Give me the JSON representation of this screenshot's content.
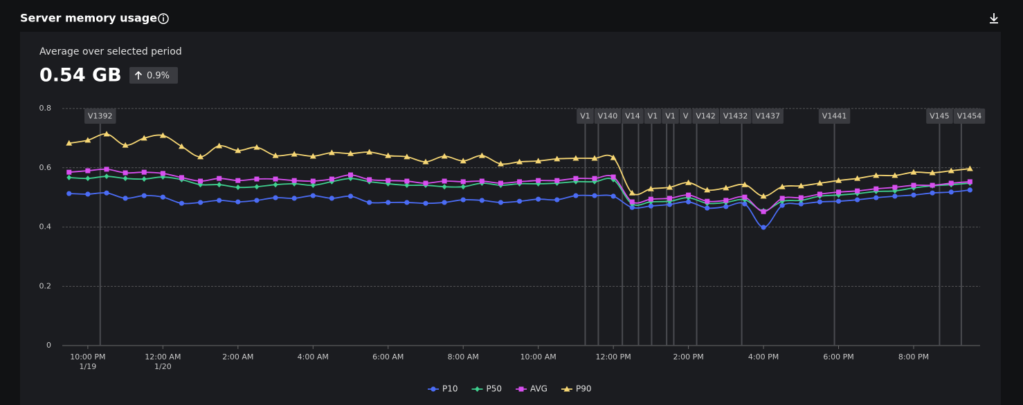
{
  "chart_data": {
    "type": "line",
    "title": "Server memory usage",
    "subtitle": "Average over selected period",
    "summary_value": "0.54 GB",
    "summary_change": "0.9%",
    "x": [
      21.5,
      22,
      22.5,
      23,
      23.5,
      24,
      24.5,
      25,
      25.5,
      26,
      26.5,
      27,
      27.5,
      28,
      28.5,
      29,
      29.5,
      30,
      30.5,
      31,
      31.5,
      32,
      32.5,
      33,
      33.5,
      34,
      34.5,
      35,
      35.5,
      36,
      36.5,
      37,
      37.5,
      38,
      38.5,
      39,
      39.5,
      40,
      40.5,
      41,
      41.5,
      42,
      42.5,
      43,
      43.5,
      44,
      44.5,
      45,
      45.5
    ],
    "xlim": [
      21.32,
      45.77
    ],
    "xticks": [
      {
        "value": 22,
        "label": "10:00 PM",
        "date": "1/19"
      },
      {
        "value": 24,
        "label": "12:00 AM",
        "date": "1/20"
      },
      {
        "value": 26,
        "label": "2:00 AM"
      },
      {
        "value": 28,
        "label": "4:00 AM"
      },
      {
        "value": 30,
        "label": "6:00 AM"
      },
      {
        "value": 32,
        "label": "8:00 AM"
      },
      {
        "value": 34,
        "label": "10:00 AM"
      },
      {
        "value": 36,
        "label": "12:00 PM"
      },
      {
        "value": 38,
        "label": "2:00 PM"
      },
      {
        "value": 40,
        "label": "4:00 PM"
      },
      {
        "value": 42,
        "label": "6:00 PM"
      },
      {
        "value": 44,
        "label": "8:00 PM"
      }
    ],
    "ylim": [
      0,
      0.8
    ],
    "yticks": [
      0,
      0.2,
      0.4,
      0.6,
      0.8
    ],
    "grid": true,
    "legend": "bottom",
    "series": [
      {
        "name": "P10",
        "color": "#4b6cf5",
        "marker": "circle",
        "values": [
          0.513,
          0.511,
          0.515,
          0.497,
          0.506,
          0.501,
          0.48,
          0.483,
          0.49,
          0.485,
          0.49,
          0.499,
          0.497,
          0.506,
          0.497,
          0.504,
          0.483,
          0.483,
          0.483,
          0.48,
          0.483,
          0.492,
          0.49,
          0.483,
          0.487,
          0.494,
          0.492,
          0.506,
          0.506,
          0.504,
          0.466,
          0.471,
          0.476,
          0.485,
          0.464,
          0.469,
          0.478,
          0.399,
          0.473,
          0.478,
          0.485,
          0.487,
          0.492,
          0.499,
          0.504,
          0.508,
          0.515,
          0.518,
          0.525
        ]
      },
      {
        "name": "P50",
        "color": "#3fd18f",
        "marker": "diamond",
        "values": [
          0.567,
          0.564,
          0.571,
          0.564,
          0.562,
          0.569,
          0.56,
          0.543,
          0.543,
          0.534,
          0.536,
          0.543,
          0.546,
          0.541,
          0.553,
          0.564,
          0.553,
          0.546,
          0.541,
          0.541,
          0.536,
          0.536,
          0.548,
          0.541,
          0.546,
          0.546,
          0.548,
          0.553,
          0.553,
          0.56,
          0.478,
          0.485,
          0.487,
          0.499,
          0.48,
          0.483,
          0.492,
          0.455,
          0.487,
          0.49,
          0.504,
          0.508,
          0.513,
          0.52,
          0.522,
          0.532,
          0.539,
          0.543,
          0.548
        ]
      },
      {
        "name": "AVG",
        "color": "#d84ff0",
        "marker": "square",
        "values": [
          0.585,
          0.59,
          0.595,
          0.583,
          0.585,
          0.581,
          0.567,
          0.555,
          0.564,
          0.557,
          0.562,
          0.562,
          0.557,
          0.555,
          0.562,
          0.576,
          0.56,
          0.557,
          0.555,
          0.548,
          0.555,
          0.553,
          0.555,
          0.548,
          0.553,
          0.557,
          0.557,
          0.564,
          0.564,
          0.569,
          0.485,
          0.494,
          0.497,
          0.508,
          0.487,
          0.49,
          0.501,
          0.452,
          0.497,
          0.499,
          0.511,
          0.518,
          0.522,
          0.529,
          0.534,
          0.541,
          0.541,
          0.548,
          0.553
        ]
      },
      {
        "name": "P90",
        "color": "#f7d774",
        "marker": "triangle",
        "values": [
          0.683,
          0.693,
          0.714,
          0.676,
          0.7,
          0.709,
          0.672,
          0.637,
          0.674,
          0.658,
          0.669,
          0.641,
          0.646,
          0.639,
          0.651,
          0.648,
          0.653,
          0.641,
          0.637,
          0.62,
          0.639,
          0.623,
          0.641,
          0.613,
          0.62,
          0.623,
          0.63,
          0.632,
          0.632,
          0.634,
          0.515,
          0.529,
          0.534,
          0.55,
          0.525,
          0.532,
          0.543,
          0.504,
          0.536,
          0.539,
          0.548,
          0.557,
          0.564,
          0.574,
          0.574,
          0.585,
          0.583,
          0.59,
          0.597
        ]
      }
    ],
    "annotations": [
      {
        "x": 22.33,
        "label": "V1392"
      },
      {
        "x": 35.25,
        "label": "V1"
      },
      {
        "x": 35.6,
        "label": "V140"
      },
      {
        "x": 36.24,
        "label": "V14"
      },
      {
        "x": 36.67,
        "label": "V1"
      },
      {
        "x": 37.02,
        "label": "V1"
      },
      {
        "x": 37.42,
        "label": "V"
      },
      {
        "x": 37.61,
        "label": "V142"
      },
      {
        "x": 38.22,
        "label": "V1432"
      },
      {
        "x": 39.42,
        "label": "V1437"
      },
      {
        "x": 41.89,
        "label": "V1441"
      },
      {
        "x": 44.69,
        "label": "V145"
      },
      {
        "x": 45.27,
        "label": "V1454"
      }
    ]
  }
}
